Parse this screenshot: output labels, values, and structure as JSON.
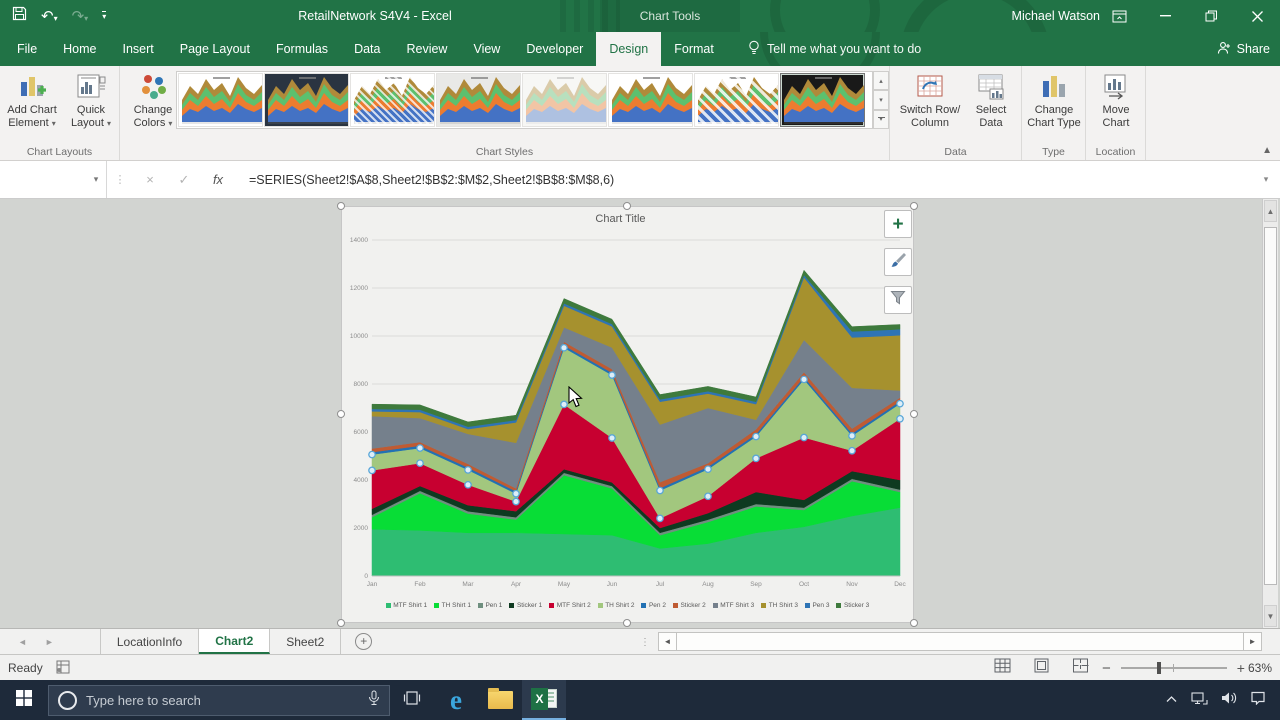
{
  "titlebar": {
    "title": "RetailNetwork S4V4 - Excel",
    "context_label": "Chart Tools",
    "user_name": "Michael Watson"
  },
  "ribbon_tabs": {
    "items": [
      "File",
      "Home",
      "Insert",
      "Page Layout",
      "Formulas",
      "Data",
      "Review",
      "View",
      "Developer",
      "Design",
      "Format"
    ],
    "active": "Design",
    "tell_me": "Tell me what you want to do",
    "share_label": "Share"
  },
  "ribbon": {
    "add_chart_element_label": [
      "Add Chart",
      "Element"
    ],
    "quick_layout_label": [
      "Quick",
      "Layout"
    ],
    "chart_layouts_group_label": "Chart Layouts",
    "change_colors_label": [
      "Change",
      "Colors"
    ],
    "chart_styles_group_label": "Chart Styles",
    "gallery_styles": [
      {
        "style": "light",
        "bg": "#ffffff",
        "overlay": null,
        "selected": false
      },
      {
        "style": "dark-navy",
        "bg": "#2a3441",
        "overlay": null,
        "selected": false
      },
      {
        "style": "sketch",
        "bg": "#ffffff",
        "overlay": "sketch",
        "selected": false
      },
      {
        "style": "light-gray",
        "bg": "#e9e9e7",
        "overlay": null,
        "selected": false
      },
      {
        "style": "faded",
        "bg": "#f7f7f5",
        "overlay": "faded",
        "selected": false
      },
      {
        "style": "light-band",
        "bg": "#ffffff",
        "overlay": null,
        "selected": false
      },
      {
        "style": "hatch",
        "bg": "#ffffff",
        "overlay": "hatch",
        "selected": false
      },
      {
        "style": "black",
        "bg": "#191919",
        "overlay": null,
        "selected": true
      }
    ],
    "switch_row_column_label": [
      "Switch Row/",
      "Column"
    ],
    "select_data_label": [
      "Select",
      "Data"
    ],
    "data_group_label": "Data",
    "change_chart_type_label": [
      "Change",
      "Chart Type"
    ],
    "type_group_label": "Type",
    "move_chart_label": [
      "Move",
      "Chart"
    ],
    "location_group_label": "Location"
  },
  "formula_bar": {
    "name_box_value": "",
    "formula": "=SERIES(Sheet2!$A$8,Sheet2!$B$2:$M$2,Sheet2!$B$8:$M$8,6)"
  },
  "chart_data": {
    "type": "area",
    "stacked": true,
    "title": "Chart Title",
    "categories": [
      "Jan",
      "Feb",
      "Mar",
      "Apr",
      "May",
      "Jun",
      "Jul",
      "Aug",
      "Sep",
      "Oct",
      "Nov",
      "Dec"
    ],
    "ylim": [
      0,
      14000
    ],
    "yticks": [
      0,
      2000,
      4000,
      6000,
      8000,
      10000,
      12000,
      14000
    ],
    "grid": true,
    "legend_position": "bottom",
    "selected_series_index": 5,
    "series": [
      {
        "name": "MTF Shirt 1",
        "color": "#2ebd72",
        "values": [
          1950,
          1900,
          1800,
          1800,
          1750,
          1700,
          1150,
          1350,
          1800,
          2050,
          2500,
          2850
        ]
      },
      {
        "name": "TH Shirt 1",
        "color": "#08dd36",
        "values": [
          500,
          1550,
          800,
          550,
          2450,
          1950,
          550,
          900,
          1100,
          700,
          1450,
          650
        ]
      },
      {
        "name": "Pen 1",
        "color": "#6f8f7f",
        "values": [
          100,
          100,
          100,
          100,
          100,
          100,
          100,
          100,
          100,
          100,
          100,
          100
        ]
      },
      {
        "name": "Sticker 1",
        "color": "#0e3a20",
        "values": [
          250,
          200,
          250,
          250,
          150,
          150,
          200,
          270,
          500,
          320,
          320,
          400
        ]
      },
      {
        "name": "MTF Shirt 2",
        "color": "#c70030",
        "values": [
          1600,
          950,
          850,
          400,
          2700,
          1850,
          400,
          700,
          1400,
          2600,
          850,
          2550
        ]
      },
      {
        "name": "TH Shirt 2",
        "color": "#a2c77e",
        "values": [
          660,
          630,
          620,
          330,
          2360,
          2620,
          1160,
          1130,
          910,
          2420,
          620,
          630
        ]
      },
      {
        "name": "Pen 2",
        "color": "#2271b3",
        "values": [
          100,
          100,
          100,
          100,
          100,
          100,
          100,
          100,
          100,
          100,
          100,
          100
        ]
      },
      {
        "name": "Sticker 2",
        "color": "#bf5b33",
        "values": [
          150,
          150,
          150,
          120,
          150,
          150,
          250,
          150,
          200,
          200,
          200,
          150
        ]
      },
      {
        "name": "MTF Shirt 3",
        "color": "#75808c",
        "values": [
          1350,
          1000,
          1250,
          1900,
          600,
          900,
          2400,
          2300,
          400,
          1350,
          1700,
          300
        ]
      },
      {
        "name": "TH Shirt 3",
        "color": "#a6912e",
        "values": [
          200,
          250,
          200,
          850,
          900,
          880,
          950,
          600,
          650,
          2600,
          2100,
          2300
        ]
      },
      {
        "name": "Pen 3",
        "color": "#2e74b5",
        "values": [
          100,
          100,
          100,
          100,
          100,
          100,
          100,
          100,
          100,
          100,
          250,
          250
        ]
      },
      {
        "name": "Sticker 3",
        "color": "#3e7a3c",
        "values": [
          200,
          200,
          200,
          200,
          200,
          200,
          200,
          200,
          200,
          200,
          200,
          200
        ]
      }
    ]
  },
  "sheet_bar": {
    "tabs": [
      {
        "label": "LocationInfo",
        "active": false
      },
      {
        "label": "Chart2",
        "active": true
      },
      {
        "label": "Sheet2",
        "active": false
      }
    ]
  },
  "status_bar": {
    "mode": "Ready",
    "zoom_level": "63%"
  },
  "taskbar": {
    "search_placeholder": "Type here to search"
  },
  "colors": {
    "excel_green": "#217346",
    "selection_handle_blue": "#58a6d8"
  }
}
